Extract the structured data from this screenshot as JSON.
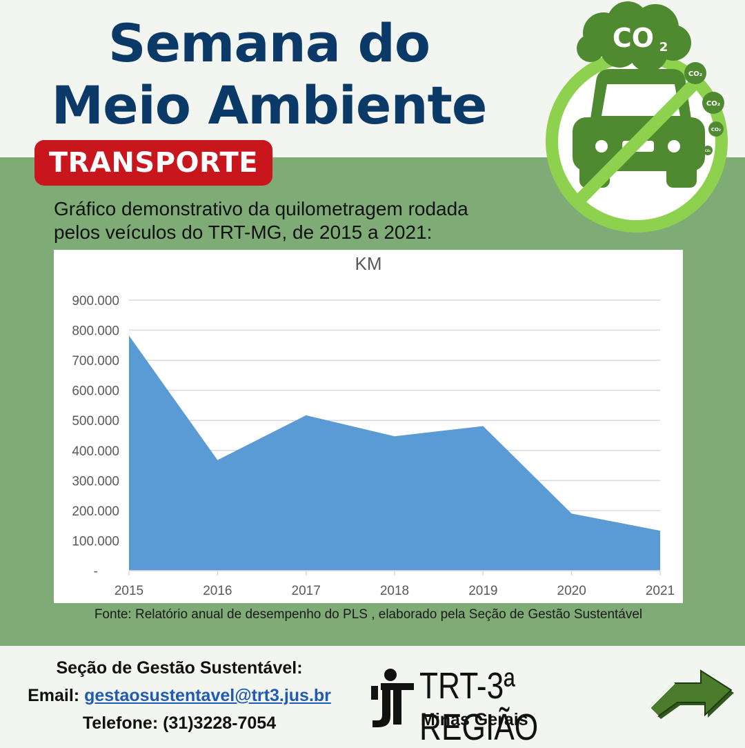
{
  "header": {
    "title_line1": "Semana do",
    "title_line2": "Meio Ambiente",
    "badge": "TRANSPORTE",
    "subtitle_line1": "Gráfico demonstrativo da quilometragem rodada",
    "subtitle_line2": "pelos veículos do TRT-MG, de 2015 a 2021:"
  },
  "emblem": {
    "icon": "no-car-co2-icon",
    "co2_large": "CO",
    "co2_sub": "2",
    "co2_small": "CO₂"
  },
  "chart_data": {
    "type": "area",
    "title": "KM",
    "x": [
      "2015",
      "2016",
      "2017",
      "2018",
      "2019",
      "2020",
      "2021"
    ],
    "series": [
      {
        "values": [
          782000,
          368000,
          517000,
          447000,
          481000,
          190000,
          133000
        ]
      }
    ],
    "ylim": [
      0,
      900000
    ],
    "yticks": [
      0,
      100000,
      200000,
      300000,
      400000,
      500000,
      600000,
      700000,
      800000,
      900000
    ],
    "ytick_labels": [
      "-",
      "100.000",
      "200.000",
      "300.000",
      "400.000",
      "500.000",
      "600.000",
      "700.000",
      "800.000",
      "900.000"
    ],
    "grid": true,
    "legend": "none",
    "fill_color": "#5b9bd5"
  },
  "source": "Fonte: Relatório anual de desempenho do PLS , elaborado pela Seção de Gestão Sustentável",
  "contact": {
    "heading": "Seção de Gestão Sustentável:",
    "email_label": "Email:",
    "email": "gestaosustentavel@trt3.jus.br",
    "phone": "Telefone: (31)3228-7054"
  },
  "logo": {
    "name": "TRT-3ª REGIÃO",
    "subtitle": "Minas Gerais",
    "icon": "trt-logo-icon"
  },
  "next_icon": "arrow-right-icon"
}
